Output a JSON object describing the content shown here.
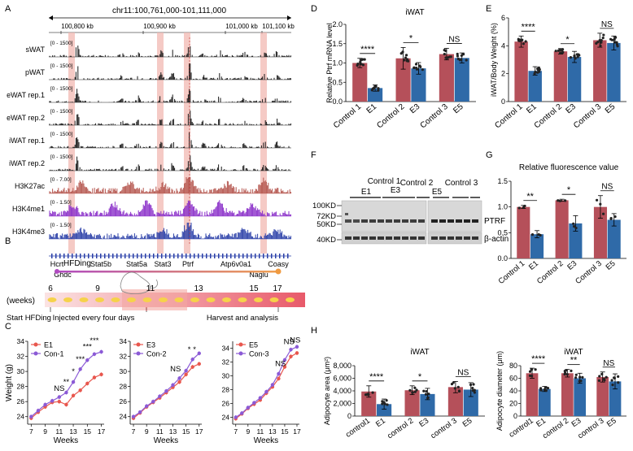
{
  "panels": {
    "A": "A",
    "B": "B",
    "C": "C",
    "D": "D",
    "E": "E",
    "F": "F",
    "G": "G",
    "H": "H"
  },
  "panel_a": {
    "title": "chr11:100,761,000-101,111,000",
    "coords": [
      "100,800 kb",
      "100,900 kb",
      "101,000 kb",
      "101,100 kb"
    ],
    "tracks": [
      {
        "name": "sWAT",
        "range": "[0 - 1500]",
        "color": "#1a1a1a"
      },
      {
        "name": "pWAT",
        "range": "[0 - 1500]",
        "color": "#1a1a1a"
      },
      {
        "name": "eWAT rep.1",
        "range": "[0 - 1500]",
        "color": "#1a1a1a"
      },
      {
        "name": "eWAT rep.2",
        "range": "[0 - 1500]",
        "color": "#1a1a1a"
      },
      {
        "name": "iWAT rep.1",
        "range": "[0 - 1500]",
        "color": "#1a1a1a"
      },
      {
        "name": "iWAT rep.2",
        "range": "[0 - 1500]",
        "color": "#1a1a1a"
      },
      {
        "name": "H3K27ac",
        "range": "[0 - 7.00]",
        "color": "#b5564e"
      },
      {
        "name": "H3K4me1",
        "range": "[0 - 1.50]",
        "color": "#8a2fc9"
      },
      {
        "name": "H3K4me3",
        "range": "[0 - 1.50]",
        "color": "#2a3fa8"
      }
    ],
    "genes_top": [
      "Hcrt",
      "Stat5b",
      "Stat5a",
      "Stat3",
      "Ptrf",
      "Atp6v0a1",
      "Coasy"
    ],
    "genes_bottom": [
      "Ghdc",
      "Naglu"
    ]
  },
  "panel_b": {
    "hfding": "HFDing",
    "weeks_label": "(weeks)",
    "weeks": [
      "6",
      "9",
      "11",
      "13",
      "15",
      "17"
    ],
    "start": "Start HFDing",
    "inject": "Injected every four days",
    "harvest": "Harvest and analysis"
  },
  "chart_data": [
    {
      "id": "C1",
      "type": "line",
      "xlabel": "Weeks",
      "ylabel": "Weight (g)",
      "x": [
        7,
        8,
        9,
        10,
        11,
        12,
        13,
        14,
        15,
        16,
        17
      ],
      "xticks": [
        "7",
        "9",
        "11",
        "13",
        "15",
        "17"
      ],
      "ylim": [
        23,
        34
      ],
      "yticks": [
        "24",
        "26",
        "28",
        "30",
        "32",
        "34"
      ],
      "series": [
        {
          "name": "E1",
          "color": "#e8574e",
          "values": [
            23.8,
            24.6,
            25.3,
            25.9,
            26.0,
            25.6,
            26.8,
            27.5,
            28.4,
            29.2,
            29.6
          ]
        },
        {
          "name": "Con-1",
          "color": "#8b5ad6",
          "values": [
            24.0,
            24.8,
            25.6,
            26.1,
            26.6,
            27.2,
            28.6,
            30.3,
            31.5,
            32.3,
            32.6
          ]
        }
      ],
      "annotations": [
        "NS",
        "**",
        "*",
        "***",
        "***",
        "***"
      ]
    },
    {
      "id": "C2",
      "type": "line",
      "xlabel": "Weeks",
      "x": [
        7,
        8,
        9,
        10,
        11,
        12,
        13,
        14,
        15,
        16,
        17
      ],
      "xticks": [
        "7",
        "9",
        "11",
        "13",
        "15",
        "17"
      ],
      "ylim": [
        23,
        34
      ],
      "yticks": [
        "24",
        "26",
        "28",
        "30",
        "32",
        "34"
      ],
      "series": [
        {
          "name": "E3",
          "color": "#e8574e",
          "values": [
            23.8,
            24.5,
            25.3,
            25.9,
            26.5,
            27.2,
            27.9,
            28.6,
            29.6,
            30.6,
            31.0
          ]
        },
        {
          "name": "Con-2",
          "color": "#8b5ad6",
          "values": [
            24.0,
            24.6,
            25.4,
            26.0,
            26.7,
            27.4,
            28.2,
            29.1,
            30.1,
            31.6,
            32.4
          ]
        }
      ],
      "annotations": [
        "NS",
        "*",
        "*"
      ]
    },
    {
      "id": "C3",
      "type": "line",
      "xlabel": "Weeks",
      "x": [
        7,
        8,
        9,
        10,
        11,
        12,
        13,
        14,
        15,
        16,
        17
      ],
      "xticks": [
        "7",
        "9",
        "11",
        "13",
        "15",
        "17"
      ],
      "ylim": [
        23,
        35
      ],
      "yticks": [
        "24",
        "26",
        "28",
        "30",
        "32",
        "34"
      ],
      "series": [
        {
          "name": "E5",
          "color": "#e8574e",
          "values": [
            23.8,
            24.5,
            25.3,
            25.9,
            26.5,
            27.5,
            28.4,
            29.6,
            31.3,
            32.8,
            33.3
          ]
        },
        {
          "name": "Con-3",
          "color": "#8b5ad6",
          "values": [
            24.0,
            24.6,
            25.4,
            26.1,
            26.8,
            27.7,
            28.7,
            30.3,
            32.3,
            33.8,
            34.2
          ]
        }
      ],
      "annotations": [
        "NS",
        "NS",
        "NS"
      ]
    },
    {
      "id": "D",
      "type": "bar",
      "title": "iWAT",
      "ylabel": "Relative Ptrf mRNA level",
      "categories": [
        "Control 1",
        "E1",
        "Control 2",
        "E3",
        "Control 3",
        "E5"
      ],
      "values": [
        1.0,
        0.35,
        1.12,
        0.86,
        1.23,
        1.13
      ],
      "errors": [
        0.12,
        0.08,
        0.28,
        0.15,
        0.15,
        0.13
      ],
      "ylim": [
        0,
        2.0
      ],
      "yticks": [
        "0.0",
        "0.5",
        "1.0",
        "1.5",
        "2.0"
      ],
      "annotations": [
        "****",
        "*",
        "NS"
      ]
    },
    {
      "id": "E",
      "type": "bar",
      "ylabel": "iWAT/Body Weight (%)",
      "categories": [
        "Control 1",
        "E1",
        "Control 2",
        "E3",
        "Control 3",
        "E5"
      ],
      "values": [
        4.3,
        2.2,
        3.6,
        3.2,
        4.4,
        4.2
      ],
      "errors": [
        0.4,
        0.3,
        0.2,
        0.4,
        0.5,
        0.5
      ],
      "ylim": [
        0,
        6
      ],
      "yticks": [
        "0",
        "2",
        "4",
        "6"
      ],
      "annotations": [
        "****",
        "*",
        "NS"
      ]
    },
    {
      "id": "G",
      "type": "bar",
      "title": "Relative fluorescence value",
      "categories": [
        "Control 1",
        "E1",
        "Control 2",
        "E3",
        "Control 3",
        "E5"
      ],
      "values": [
        1.0,
        0.47,
        1.13,
        0.68,
        1.0,
        0.75
      ],
      "errors": [
        0.03,
        0.07,
        0.02,
        0.15,
        0.22,
        0.12
      ],
      "ylim": [
        0,
        1.5
      ],
      "yticks": [
        "0.0",
        "0.5",
        "1.0",
        "1.5"
      ],
      "annotations": [
        "**",
        "*",
        "NS"
      ]
    },
    {
      "id": "H1",
      "type": "bar",
      "title": "iWAT",
      "ylabel": "Adipocyte area (μm²)",
      "categories": [
        "control1",
        "E1",
        "control 2",
        "E3",
        "control 3",
        "E5"
      ],
      "values": [
        3900,
        1900,
        4100,
        3500,
        4600,
        4200
      ],
      "errors": [
        900,
        800,
        700,
        900,
        900,
        1100
      ],
      "ylim": [
        0,
        8000
      ],
      "yticks": [
        "0",
        "2,000",
        "4,000",
        "6,000",
        "8,000"
      ],
      "annotations": [
        "****",
        "*",
        "NS"
      ]
    },
    {
      "id": "H2",
      "type": "bar",
      "title": "iWAT",
      "ylabel": "Adipocyte diameter (μm)",
      "categories": [
        "control1",
        "E1",
        "control 2",
        "E3",
        "control 3",
        "E5"
      ],
      "values": [
        68,
        43,
        68,
        60,
        62,
        55
      ],
      "errors": [
        8,
        4,
        6,
        8,
        8,
        12
      ],
      "ylim": [
        0,
        80
      ],
      "yticks": [
        "0",
        "20",
        "40",
        "60",
        "80"
      ],
      "annotations": [
        "****",
        "**",
        "NS"
      ]
    }
  ],
  "panel_f": {
    "top_labels": [
      "E1",
      "Control 1",
      "E3",
      "Control 2",
      "E5",
      "Control 3"
    ],
    "mw": [
      "100KD",
      "72KD",
      "50KD",
      "40KD"
    ],
    "bands": [
      "PTRF",
      "β-actin"
    ]
  },
  "colors": {
    "control": "#b5505a",
    "treated": "#2f6aa8",
    "e_line": "#e8574e",
    "con_line": "#8b5ad6"
  }
}
